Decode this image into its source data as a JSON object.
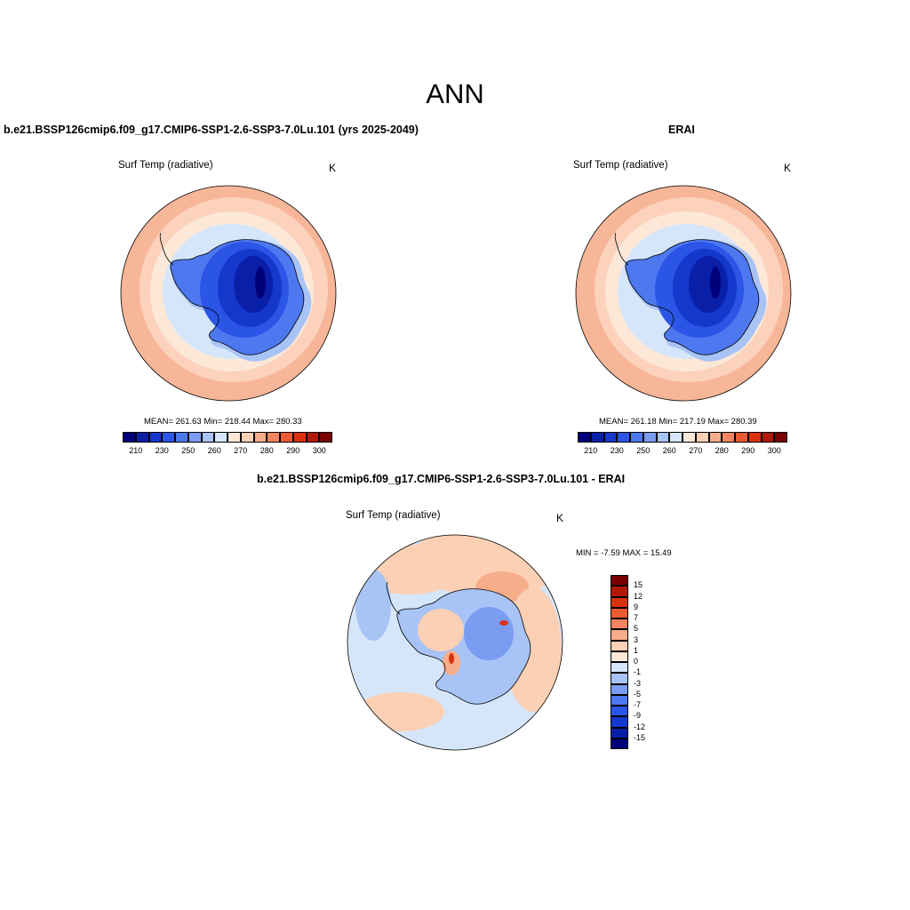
{
  "figure": {
    "title": "ANN"
  },
  "panels": [
    {
      "title": "b.e21.BSSP126cmip6.f09_g17.CMIP6-SSP1-2.6-SSP3-7.0Lu.101 (yrs 2025-2049)",
      "variable": "Surf Temp (radiative)",
      "units": "K",
      "stats": "MEAN= 261.63  Min= 218.44  Max= 280.33",
      "mean": 261.63,
      "min": 218.44,
      "max": 280.33
    },
    {
      "title": "ERAI",
      "variable": "Surf Temp (radiative)",
      "units": "K",
      "stats": "MEAN= 261.18  Min= 217.19  Max= 280.39",
      "mean": 261.18,
      "min": 217.19,
      "max": 280.39
    },
    {
      "title": "b.e21.BSSP126cmip6.f09_g17.CMIP6-SSP1-2.6-SSP3-7.0Lu.101 - ERAI",
      "variable": "Surf Temp (radiative)",
      "units": "K",
      "stats": "MIN =  -7.59 MAX =  15.49",
      "min": -7.59,
      "max": 15.49
    }
  ],
  "colorbars": {
    "absolute": {
      "colors": [
        "#00007a",
        "#0a1fa8",
        "#1437cc",
        "#2a55e6",
        "#4d78f0",
        "#7a9df2",
        "#a8c3f5",
        "#d6e6fa",
        "#fde8d8",
        "#fbd0b5",
        "#f7ad8a",
        "#f2855f",
        "#ec5a32",
        "#d8320f",
        "#b21a08",
        "#7a0000"
      ],
      "tick_labels": [
        "210",
        "230",
        "250",
        "260",
        "270",
        "280",
        "290",
        "300"
      ]
    },
    "difference": {
      "colors": [
        "#00007a",
        "#0a1fa8",
        "#1437cc",
        "#2a55e6",
        "#4d78f0",
        "#7a9df2",
        "#a8c3f5",
        "#d6e6fa",
        "#fde8d8",
        "#fbd0b5",
        "#f7ad8a",
        "#f2855f",
        "#ec5a32",
        "#d8320f",
        "#b21a08",
        "#7a0000"
      ],
      "tick_labels": [
        "15",
        "12",
        "9",
        "7",
        "5",
        "3",
        "1",
        "0",
        "-1",
        "-3",
        "-5",
        "-7",
        "-9",
        "-12",
        "-15"
      ]
    }
  },
  "map": {
    "projection": "south polar stereographic",
    "region": "Antarctica / Southern Ocean",
    "colors": {
      "outer_ocean": "#f8b699",
      "mid_ocean": "#fcd2bd",
      "near_ice": "#fde8d8",
      "sea_ice": "#d6e6fa",
      "coast": "#a8c3f5",
      "ice_edge": "#4d78f0",
      "ice_mid": "#2a55e6",
      "ice_high": "#1437cc",
      "ice_top": "#0a1fa8",
      "ice_peak": "#00007a",
      "diff_bg": "#d6e6fa",
      "diff_warm": "#fbd0b5",
      "diff_warmer": "#f7ad8a",
      "diff_cold": "#a8c3f5",
      "diff_colder": "#7a9df2",
      "diff_hot": "#d8320f"
    }
  }
}
